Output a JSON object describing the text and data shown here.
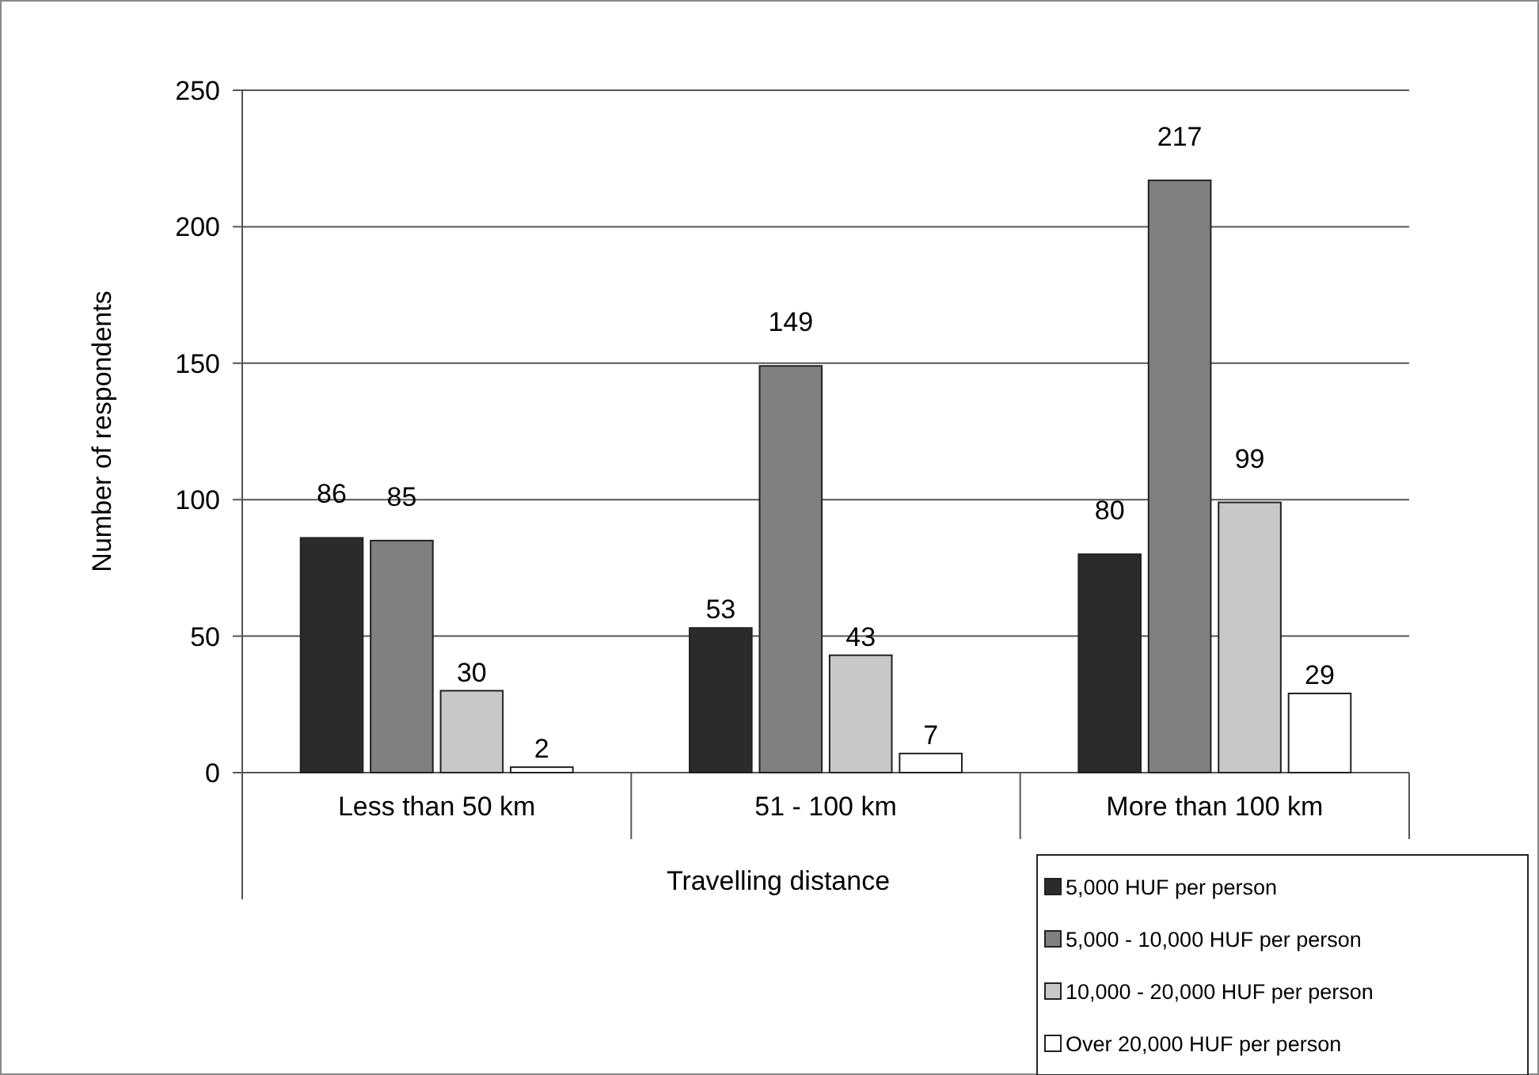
{
  "chart_data": {
    "type": "bar",
    "xlabel": "Travelling distance",
    "ylabel": "Number of respondents",
    "categories": [
      "Less than 50 km",
      "51 - 100 km",
      "More than 100 km"
    ],
    "series": [
      {
        "name": "5,000 HUF per person",
        "color": "#2b2b2b",
        "values": [
          86,
          53,
          80
        ]
      },
      {
        "name": "5,000 - 10,000 HUF per person",
        "color": "#808080",
        "values": [
          85,
          149,
          217
        ]
      },
      {
        "name": "10,000 - 20,000 HUF per person",
        "color": "#c8c8c8",
        "values": [
          30,
          43,
          99
        ]
      },
      {
        "name": "Over 20,000 HUF per person",
        "color": "#ffffff",
        "values": [
          2,
          7,
          29
        ]
      }
    ],
    "ylim": [
      0,
      250
    ],
    "yticks": [
      0,
      50,
      100,
      150,
      200,
      250
    ],
    "grid": "y",
    "legend": "bottom right",
    "data_labels": true
  }
}
